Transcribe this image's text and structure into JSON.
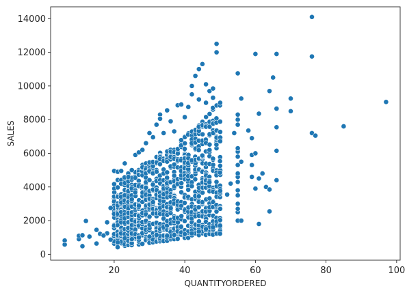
{
  "chart_data": {
    "type": "scatter",
    "title": "",
    "xlabel": "QUANTITYORDERED",
    "ylabel": "SALES",
    "xlim": [
      2,
      101
    ],
    "ylim": [
      -350,
      14700
    ],
    "xticks": [
      20,
      40,
      60,
      80,
      100
    ],
    "yticks": [
      0,
      2000,
      4000,
      6000,
      8000,
      10000,
      12000,
      14000
    ],
    "grid": false,
    "legend": "none",
    "marker_color": "#1f77b4",
    "dense_cluster": {
      "x_range": [
        20,
        50
      ],
      "note_points_per_quantity": 34
    },
    "points": [
      [
        6,
        580
      ],
      [
        6,
        820
      ],
      [
        10,
        900
      ],
      [
        10,
        1100
      ],
      [
        11,
        480
      ],
      [
        11,
        1130
      ],
      [
        12,
        1980
      ],
      [
        13,
        1050
      ],
      [
        15,
        640
      ],
      [
        15,
        1450
      ],
      [
        16,
        1210
      ],
      [
        18,
        1250
      ],
      [
        18,
        1900
      ],
      [
        19,
        2750
      ],
      [
        19,
        870
      ],
      [
        17,
        1120
      ],
      [
        20,
        4950
      ],
      [
        21,
        4900
      ],
      [
        22,
        4950
      ],
      [
        23,
        5400
      ],
      [
        24,
        4600
      ],
      [
        25,
        5000
      ],
      [
        26,
        5900
      ],
      [
        27,
        6050
      ],
      [
        28,
        6200
      ],
      [
        29,
        6600
      ],
      [
        30,
        7200
      ],
      [
        31,
        6950
      ],
      [
        32,
        7700
      ],
      [
        33,
        8300
      ],
      [
        33,
        8050
      ],
      [
        34,
        7200
      ],
      [
        35,
        8550
      ],
      [
        36,
        7900
      ],
      [
        37,
        7300
      ],
      [
        38,
        8850
      ],
      [
        39,
        8900
      ],
      [
        40,
        8150
      ],
      [
        41,
        8750
      ],
      [
        42,
        9500
      ],
      [
        42,
        10000
      ],
      [
        43,
        10600
      ],
      [
        44,
        11000
      ],
      [
        45,
        11300
      ],
      [
        46,
        10100
      ],
      [
        47,
        9700
      ],
      [
        48,
        9850
      ],
      [
        49,
        12000
      ],
      [
        49,
        12500
      ],
      [
        46,
        9000
      ],
      [
        44,
        9200
      ],
      [
        48,
        9300
      ],
      [
        21,
        700
      ],
      [
        23,
        950
      ],
      [
        25,
        900
      ],
      [
        27,
        1000
      ],
      [
        30,
        1050
      ],
      [
        32,
        1150
      ],
      [
        35,
        1100
      ],
      [
        37,
        1150
      ],
      [
        40,
        1200
      ],
      [
        42,
        1250
      ],
      [
        44,
        1350
      ],
      [
        46,
        1500
      ],
      [
        48,
        1600
      ],
      [
        50,
        1700
      ],
      [
        52,
        3550
      ],
      [
        53,
        4200
      ],
      [
        54,
        7200
      ],
      [
        55,
        2000
      ],
      [
        55,
        2500
      ],
      [
        55,
        2700
      ],
      [
        55,
        3000
      ],
      [
        55,
        3500
      ],
      [
        55,
        3800
      ],
      [
        55,
        4300
      ],
      [
        55,
        4600
      ],
      [
        55,
        4800
      ],
      [
        55,
        5300
      ],
      [
        55,
        5800
      ],
      [
        55,
        6100
      ],
      [
        55,
        6300
      ],
      [
        55,
        7700
      ],
      [
        55,
        8000
      ],
      [
        55,
        8300
      ],
      [
        55,
        10750
      ],
      [
        56,
        2000
      ],
      [
        56,
        5500
      ],
      [
        56,
        9250
      ],
      [
        58,
        7350
      ],
      [
        59,
        4600
      ],
      [
        59,
        5300
      ],
      [
        59,
        5900
      ],
      [
        59,
        6900
      ],
      [
        60,
        3900
      ],
      [
        60,
        6000
      ],
      [
        60,
        11900
      ],
      [
        61,
        1800
      ],
      [
        61,
        4500
      ],
      [
        61,
        8350
      ],
      [
        62,
        4800
      ],
      [
        63,
        4000
      ],
      [
        64,
        2550
      ],
      [
        64,
        3850
      ],
      [
        64,
        9700
      ],
      [
        65,
        10500
      ],
      [
        66,
        4400
      ],
      [
        66,
        6150
      ],
      [
        66,
        7550
      ],
      [
        66,
        8650
      ],
      [
        66,
        11900
      ],
      [
        70,
        8500
      ],
      [
        70,
        9250
      ],
      [
        76,
        7200
      ],
      [
        76,
        11750
      ],
      [
        76,
        14100
      ],
      [
        77,
        7050
      ],
      [
        85,
        7600
      ],
      [
        97,
        9050
      ]
    ]
  }
}
